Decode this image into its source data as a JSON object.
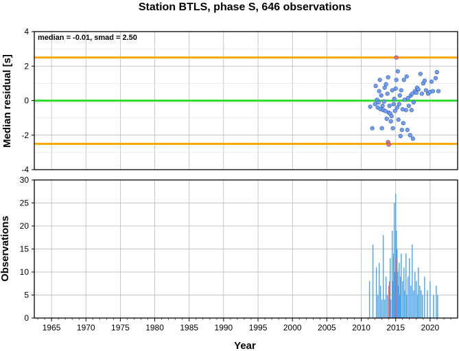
{
  "chart_data": [
    {
      "type": "scatter",
      "title": "Station BTLS, phase S, 646 observations",
      "annotation": "median = -0.01, smad = 2.50",
      "xlabel": "",
      "ylabel": "Median residual [s]",
      "xlim": [
        1962.5,
        2024
      ],
      "ylim": [
        -4,
        4
      ],
      "yticks": [
        "4",
        "2",
        "0",
        "-2",
        "-4"
      ],
      "grid": true,
      "reference_lines": [
        {
          "name": "median",
          "y": 0,
          "color": "#33dd33"
        },
        {
          "name": "+smad",
          "y": 2.5,
          "color": "#ffa500"
        },
        {
          "name": "-smad",
          "y": -2.5,
          "color": "#ffa500"
        }
      ],
      "series": [
        {
          "color": "#6f9ff2",
          "points": [
            [
              2011.3,
              -0.35
            ],
            [
              2011.6,
              -1.6
            ],
            [
              2012.0,
              -0.2
            ],
            [
              2012.1,
              0.85
            ],
            [
              2012.3,
              0.05
            ],
            [
              2012.4,
              -0.4
            ],
            [
              2012.5,
              -0.1
            ],
            [
              2012.6,
              0.55
            ],
            [
              2012.7,
              1.2
            ],
            [
              2012.8,
              -0.5
            ],
            [
              2012.9,
              0.3
            ],
            [
              2013.0,
              -1.6
            ],
            [
              2013.1,
              -0.3
            ],
            [
              2013.2,
              -0.55
            ],
            [
              2013.3,
              -0.05
            ],
            [
              2013.4,
              0.75
            ],
            [
              2013.5,
              -0.6
            ],
            [
              2013.6,
              0.95
            ],
            [
              2013.7,
              -1.05
            ],
            [
              2013.8,
              0.4
            ],
            [
              2013.9,
              1.35
            ],
            [
              2014.0,
              -0.7
            ],
            [
              2014.1,
              -0.3
            ],
            [
              2014.2,
              -0.75
            ],
            [
              2014.3,
              -1.2
            ],
            [
              2014.4,
              -0.9
            ],
            [
              2014.5,
              0.6
            ],
            [
              2014.6,
              -1.6
            ],
            [
              2014.7,
              -0.2
            ],
            [
              2014.8,
              0.1
            ],
            [
              2014.9,
              -0.6
            ],
            [
              2015.0,
              0.7
            ],
            [
              2015.1,
              1.2
            ],
            [
              2015.2,
              -0.4
            ],
            [
              2015.3,
              1.7
            ],
            [
              2015.4,
              -1.1
            ],
            [
              2015.5,
              -0.2
            ],
            [
              2015.6,
              0.3
            ],
            [
              2015.7,
              -2.05
            ],
            [
              2015.8,
              0.6
            ],
            [
              2015.9,
              -1.7
            ],
            [
              2016.0,
              -0.5
            ],
            [
              2016.1,
              -1.3
            ],
            [
              2016.2,
              1.2
            ],
            [
              2016.3,
              0.05
            ],
            [
              2016.5,
              -0.55
            ],
            [
              2016.6,
              1.4
            ],
            [
              2016.7,
              -1.7
            ],
            [
              2016.8,
              0.15
            ],
            [
              2016.9,
              -0.3
            ],
            [
              2017.1,
              -2.0
            ],
            [
              2017.2,
              0.3
            ],
            [
              2017.3,
              -0.55
            ],
            [
              2017.4,
              0.4
            ],
            [
              2017.5,
              -2.2
            ],
            [
              2017.6,
              -0.1
            ],
            [
              2017.8,
              0.55
            ],
            [
              2018.0,
              0.45
            ],
            [
              2018.1,
              0.75
            ],
            [
              2018.3,
              0.65
            ],
            [
              2018.6,
              1.55
            ],
            [
              2018.8,
              0.4
            ],
            [
              2019.0,
              1.0
            ],
            [
              2019.2,
              1.15
            ],
            [
              2019.4,
              0.6
            ],
            [
              2019.7,
              0.4
            ],
            [
              2020.0,
              0.5
            ],
            [
              2020.2,
              1.1
            ],
            [
              2020.4,
              0.55
            ],
            [
              2020.8,
              1.3
            ],
            [
              2021.0,
              1.65
            ],
            [
              2021.2,
              0.55
            ]
          ]
        },
        {
          "color": "#f07070",
          "points": [
            [
              2013.9,
              -2.4
            ],
            [
              2014.0,
              -2.55
            ],
            [
              2015.1,
              2.5
            ]
          ]
        }
      ]
    },
    {
      "type": "bar",
      "xlabel": "Year",
      "ylabel": "Observations",
      "xlim": [
        1962.5,
        2024
      ],
      "ylim": [
        0,
        30
      ],
      "xticks": [
        "1965",
        "1970",
        "1975",
        "1980",
        "1985",
        "1990",
        "1995",
        "2000",
        "2005",
        "2010",
        "2015",
        "2020"
      ],
      "yticks": [
        "30",
        "25",
        "20",
        "15",
        "10",
        "5",
        "0"
      ],
      "grid": true,
      "series": [
        {
          "name": "",
          "color": "#4aa3f0",
          "points": [
            [
              2011.2,
              8
            ],
            [
              2011.7,
              16
            ],
            [
              2012.2,
              11
            ],
            [
              2012.4,
              5
            ],
            [
              2012.6,
              12
            ],
            [
              2012.8,
              7
            ],
            [
              2013.0,
              4
            ],
            [
              2013.2,
              18
            ],
            [
              2013.4,
              4
            ],
            [
              2013.6,
              9
            ],
            [
              2013.8,
              5
            ],
            [
              2014.0,
              7
            ],
            [
              2014.2,
              13
            ],
            [
              2014.3,
              4
            ],
            [
              2014.5,
              19
            ],
            [
              2014.6,
              8
            ],
            [
              2014.7,
              14
            ],
            [
              2014.8,
              25
            ],
            [
              2014.9,
              10
            ],
            [
              2015.0,
              27
            ],
            [
              2015.1,
              19
            ],
            [
              2015.2,
              15
            ],
            [
              2015.3,
              10
            ],
            [
              2015.4,
              7
            ],
            [
              2015.5,
              12
            ],
            [
              2015.6,
              5
            ],
            [
              2015.7,
              9
            ],
            [
              2015.8,
              14
            ],
            [
              2016.0,
              8
            ],
            [
              2016.2,
              11
            ],
            [
              2016.3,
              6
            ],
            [
              2016.5,
              14
            ],
            [
              2016.6,
              5
            ],
            [
              2016.8,
              9
            ],
            [
              2017.0,
              13
            ],
            [
              2017.2,
              7
            ],
            [
              2017.4,
              16
            ],
            [
              2017.6,
              6
            ],
            [
              2017.8,
              10
            ],
            [
              2018.0,
              8
            ],
            [
              2018.2,
              5
            ],
            [
              2018.3,
              11
            ],
            [
              2018.5,
              7
            ],
            [
              2018.7,
              6
            ],
            [
              2018.9,
              5
            ],
            [
              2019.2,
              9
            ],
            [
              2019.6,
              6
            ],
            [
              2020.0,
              8
            ],
            [
              2020.5,
              5
            ],
            [
              2020.9,
              7
            ],
            [
              2021.1,
              5
            ]
          ]
        },
        {
          "name": "",
          "color": "#e86060",
          "points": [
            [
              2014.0,
              7
            ],
            [
              2014.1,
              8
            ],
            [
              2015.0,
              13
            ]
          ]
        }
      ]
    }
  ]
}
